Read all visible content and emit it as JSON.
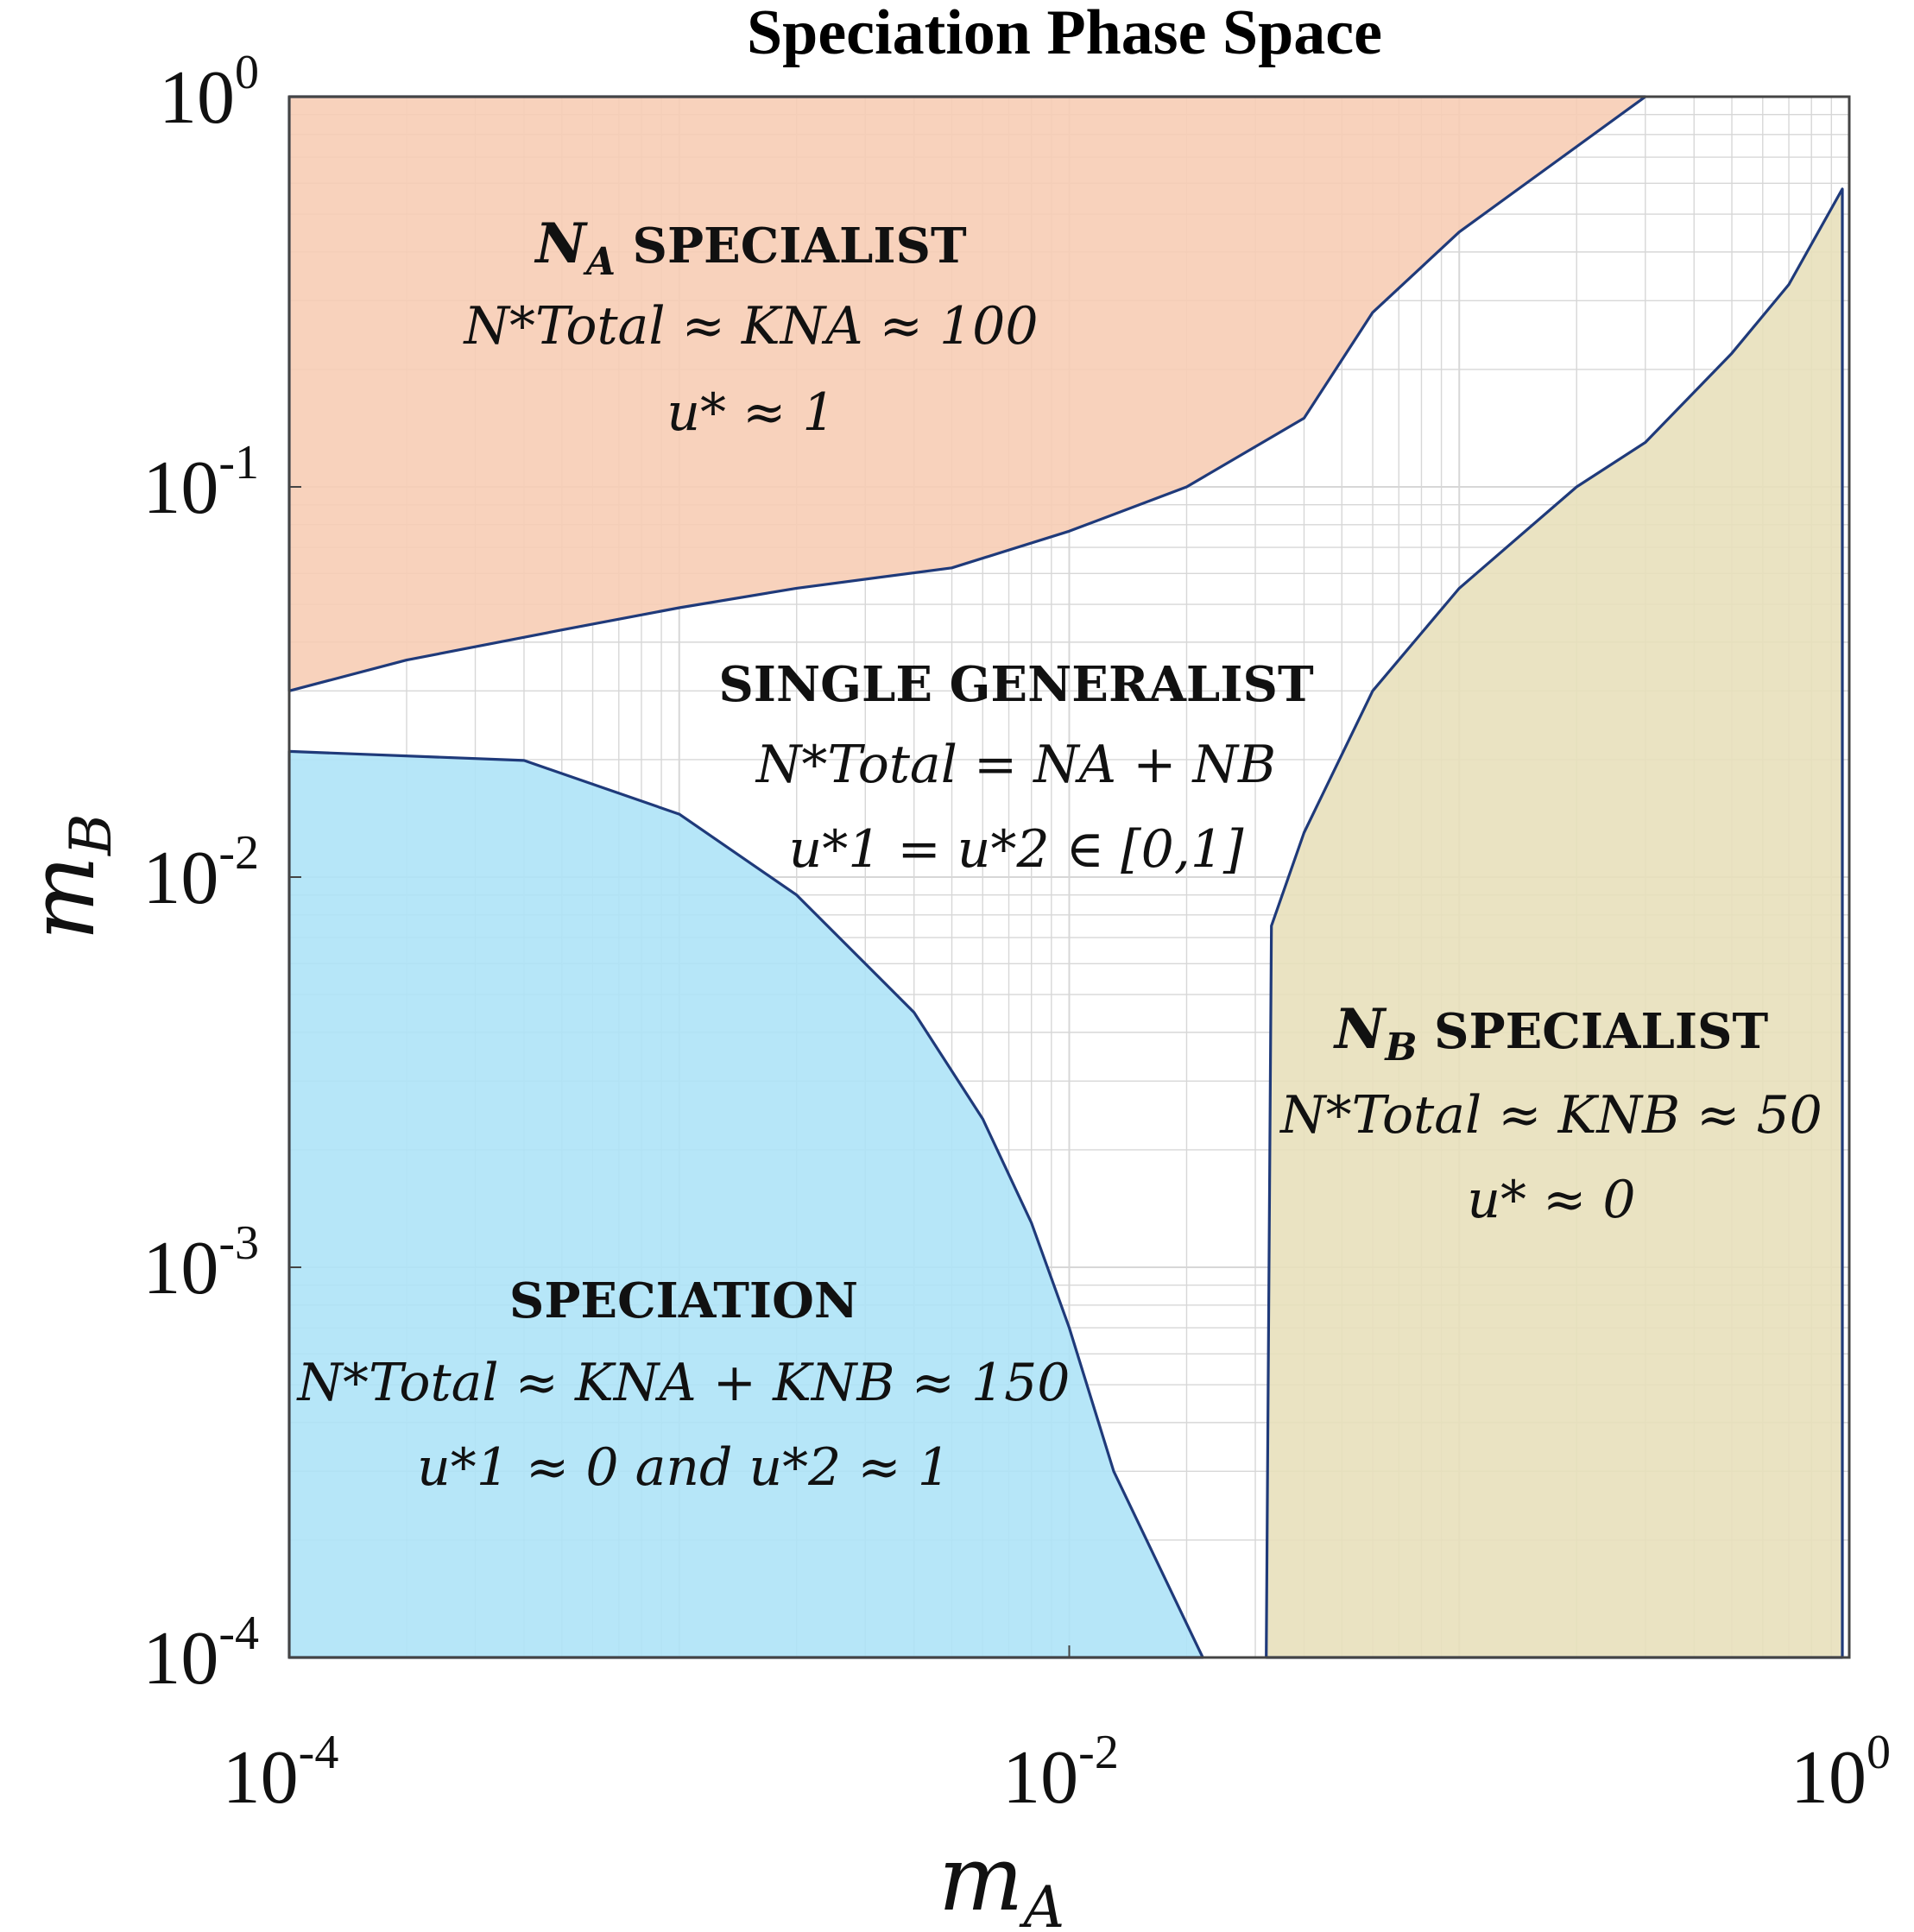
{
  "chart_data": {
    "type": "area",
    "title": "Speciation Phase Space",
    "xlabel": "m_A",
    "ylabel": "m_B",
    "xscale": "log",
    "yscale": "log",
    "xlim": [
      0.0001,
      1
    ],
    "ylim": [
      0.0001,
      1
    ],
    "grid": true,
    "x_ticks": [
      {
        "base": "10",
        "exp": "-4",
        "value": 0.0001
      },
      {
        "base": "10",
        "exp": "-2",
        "value": 0.01
      },
      {
        "base": "10",
        "exp": "0",
        "value": 1
      }
    ],
    "y_ticks": [
      {
        "base": "10",
        "exp": "0",
        "value": 1
      },
      {
        "base": "10",
        "exp": "-1",
        "value": 0.1
      },
      {
        "base": "10",
        "exp": "-2",
        "value": 0.01
      },
      {
        "base": "10",
        "exp": "-3",
        "value": 0.001
      },
      {
        "base": "10",
        "exp": "-4",
        "value": 0.0001
      }
    ],
    "regions": [
      {
        "name": "N_A SPECIALIST",
        "color": "#f7cdb5",
        "boundary": [
          [
            0.0001,
            0.03
          ],
          [
            0.0002,
            0.036
          ],
          [
            0.0005,
            0.043
          ],
          [
            0.001,
            0.049
          ],
          [
            0.002,
            0.055
          ],
          [
            0.005,
            0.062
          ],
          [
            0.01,
            0.077
          ],
          [
            0.02,
            0.1
          ],
          [
            0.04,
            0.15
          ],
          [
            0.06,
            0.28
          ],
          [
            0.1,
            0.45
          ],
          [
            0.3,
            1
          ],
          [
            0.0001,
            1
          ]
        ]
      },
      {
        "name": "SPECIATION",
        "color": "#aee3f7",
        "boundary": [
          [
            0.0001,
            0.0001
          ],
          [
            0.0001,
            0.021
          ],
          [
            0.0004,
            0.0199
          ],
          [
            0.001,
            0.0145
          ],
          [
            0.002,
            0.009
          ],
          [
            0.004,
            0.0045
          ],
          [
            0.006,
            0.0024
          ],
          [
            0.008,
            0.0013
          ],
          [
            0.01,
            0.0007
          ],
          [
            0.013,
            0.0003
          ],
          [
            0.022,
            0.0001
          ]
        ]
      },
      {
        "name": "N_B SPECIALIST",
        "color": "#e8e0bb",
        "boundary": [
          [
            0.032,
            0.0001
          ],
          [
            0.033,
            0.0075
          ],
          [
            0.04,
            0.013
          ],
          [
            0.06,
            0.03
          ],
          [
            0.1,
            0.055
          ],
          [
            0.2,
            0.1
          ],
          [
            0.3,
            0.13
          ],
          [
            0.5,
            0.22
          ],
          [
            0.7,
            0.33
          ],
          [
            0.96,
            0.58
          ],
          [
            0.96,
            0.0001
          ]
        ]
      }
    ],
    "annotations": [
      {
        "title": "N_A SPECIALIST",
        "lines": [
          "N*_Total ≈ K_N_A ≈ 100",
          "u* ≈ 1"
        ]
      },
      {
        "title": "SINGLE GENERALIST",
        "lines": [
          "N*_Total = N_A + N_B",
          "u*_1 = u*_2 ∈ [0,1]"
        ]
      },
      {
        "title": "N_B SPECIALIST",
        "lines": [
          "N*_Total ≈ K_N_B ≈ 50",
          "u* ≈ 0"
        ]
      },
      {
        "title": "SPECIATION",
        "lines": [
          "N*_Total ≈ K_N_A + K_N_B ≈ 150",
          "u*_1 ≈ 0 and u*_2 ≈ 1"
        ]
      }
    ]
  },
  "labels": {
    "na_title_main": "N",
    "na_title_sub": "A",
    "na_title_rest": " SPECIALIST",
    "nb_title_main": "N",
    "nb_title_sub": "B",
    "nb_title_rest": " SPECIALIST",
    "gen_title": "SINGLE GENERALIST",
    "spec_title": "SPECIATION",
    "na_line1": "N*Total ≈ KNA ≈ 100",
    "na_line2": "u* ≈ 1",
    "gen_line1": "N*Total = NA + NB",
    "gen_line2": "u*1 = u*2 ∈ [0,1]",
    "nb_line1": "N*Total ≈ KNB ≈ 50",
    "nb_line2": "u* ≈ 0",
    "spec_line1": "N*Total ≈ KNA + KNB ≈ 150",
    "spec_line2": "u*1 ≈ 0 and u*2 ≈ 1",
    "xlabel_main": "m",
    "xlabel_sub": "A",
    "ylabel_main": "m",
    "ylabel_sub": "B"
  },
  "colors": {
    "boundary": "#1f3a7a",
    "grid": "#d7d7d7",
    "axis": "#666666"
  }
}
